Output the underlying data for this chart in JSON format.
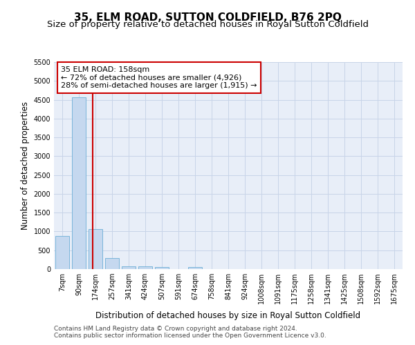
{
  "title": "35, ELM ROAD, SUTTON COLDFIELD, B76 2PQ",
  "subtitle": "Size of property relative to detached houses in Royal Sutton Coldfield",
  "xlabel": "Distribution of detached houses by size in Royal Sutton Coldfield",
  "ylabel": "Number of detached properties",
  "categories": [
    "7sqm",
    "90sqm",
    "174sqm",
    "257sqm",
    "341sqm",
    "424sqm",
    "507sqm",
    "591sqm",
    "674sqm",
    "758sqm",
    "841sqm",
    "924sqm",
    "1008sqm",
    "1091sqm",
    "1175sqm",
    "1258sqm",
    "1341sqm",
    "1425sqm",
    "1508sqm",
    "1592sqm",
    "1675sqm"
  ],
  "values": [
    880,
    4560,
    1060,
    290,
    80,
    80,
    60,
    0,
    60,
    0,
    0,
    0,
    0,
    0,
    0,
    0,
    0,
    0,
    0,
    0,
    0
  ],
  "bar_color": "#c5d8ef",
  "bar_edge_color": "#6baed6",
  "property_line_x": 1.82,
  "annotation_text": "35 ELM ROAD: 158sqm\n← 72% of detached houses are smaller (4,926)\n28% of semi-detached houses are larger (1,915) →",
  "annotation_box_color": "#ffffff",
  "annotation_box_edge": "#cc0000",
  "vline_color": "#cc0000",
  "ylim": [
    0,
    5500
  ],
  "yticks": [
    0,
    500,
    1000,
    1500,
    2000,
    2500,
    3000,
    3500,
    4000,
    4500,
    5000,
    5500
  ],
  "footer1": "Contains HM Land Registry data © Crown copyright and database right 2024.",
  "footer2": "Contains public sector information licensed under the Open Government Licence v3.0.",
  "bg_color": "#ffffff",
  "plot_bg_color": "#e8eef8",
  "grid_color": "#c8d4e8",
  "title_fontsize": 11,
  "subtitle_fontsize": 9.5,
  "tick_fontsize": 7,
  "ylabel_fontsize": 8.5,
  "xlabel_fontsize": 8.5,
  "footer_fontsize": 6.5,
  "ann_fontsize": 8
}
